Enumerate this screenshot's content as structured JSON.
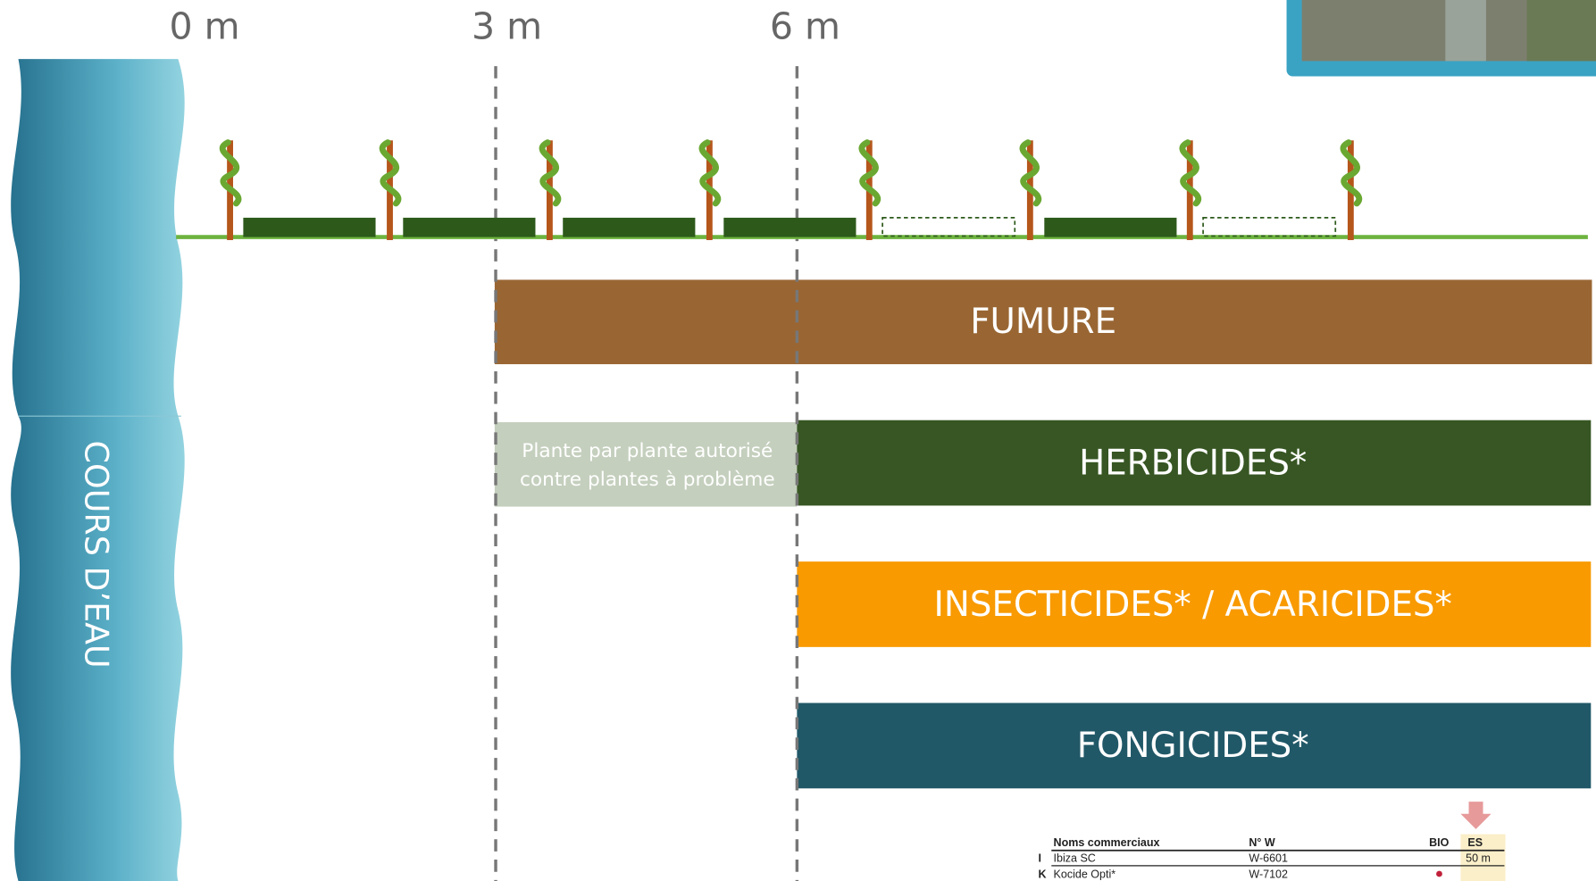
{
  "distance_labels": [
    "0 m",
    "3 m",
    "6 m"
  ],
  "river_label": "COURS D’EAU",
  "zones": [
    {
      "label": "FUMURE"
    },
    {
      "label": "HERBICIDES*"
    },
    {
      "label": "INSECTICIDES* / ACARICIDES*"
    },
    {
      "label": "FONGICIDES*"
    }
  ],
  "note": {
    "lines": [
      "Plante par plante autorisé",
      "contre plantes à problème"
    ]
  },
  "table": {
    "headers": [
      "Noms commerciaux",
      "N° W",
      "BIO",
      "ES"
    ],
    "rows": [
      {
        "letter": "I",
        "name": "Ibiza SC",
        "number": "W-6601",
        "es": "50 m"
      },
      {
        "letter": "K",
        "name": "Kocide Opti*",
        "number": "W-7102"
      }
    ]
  }
}
